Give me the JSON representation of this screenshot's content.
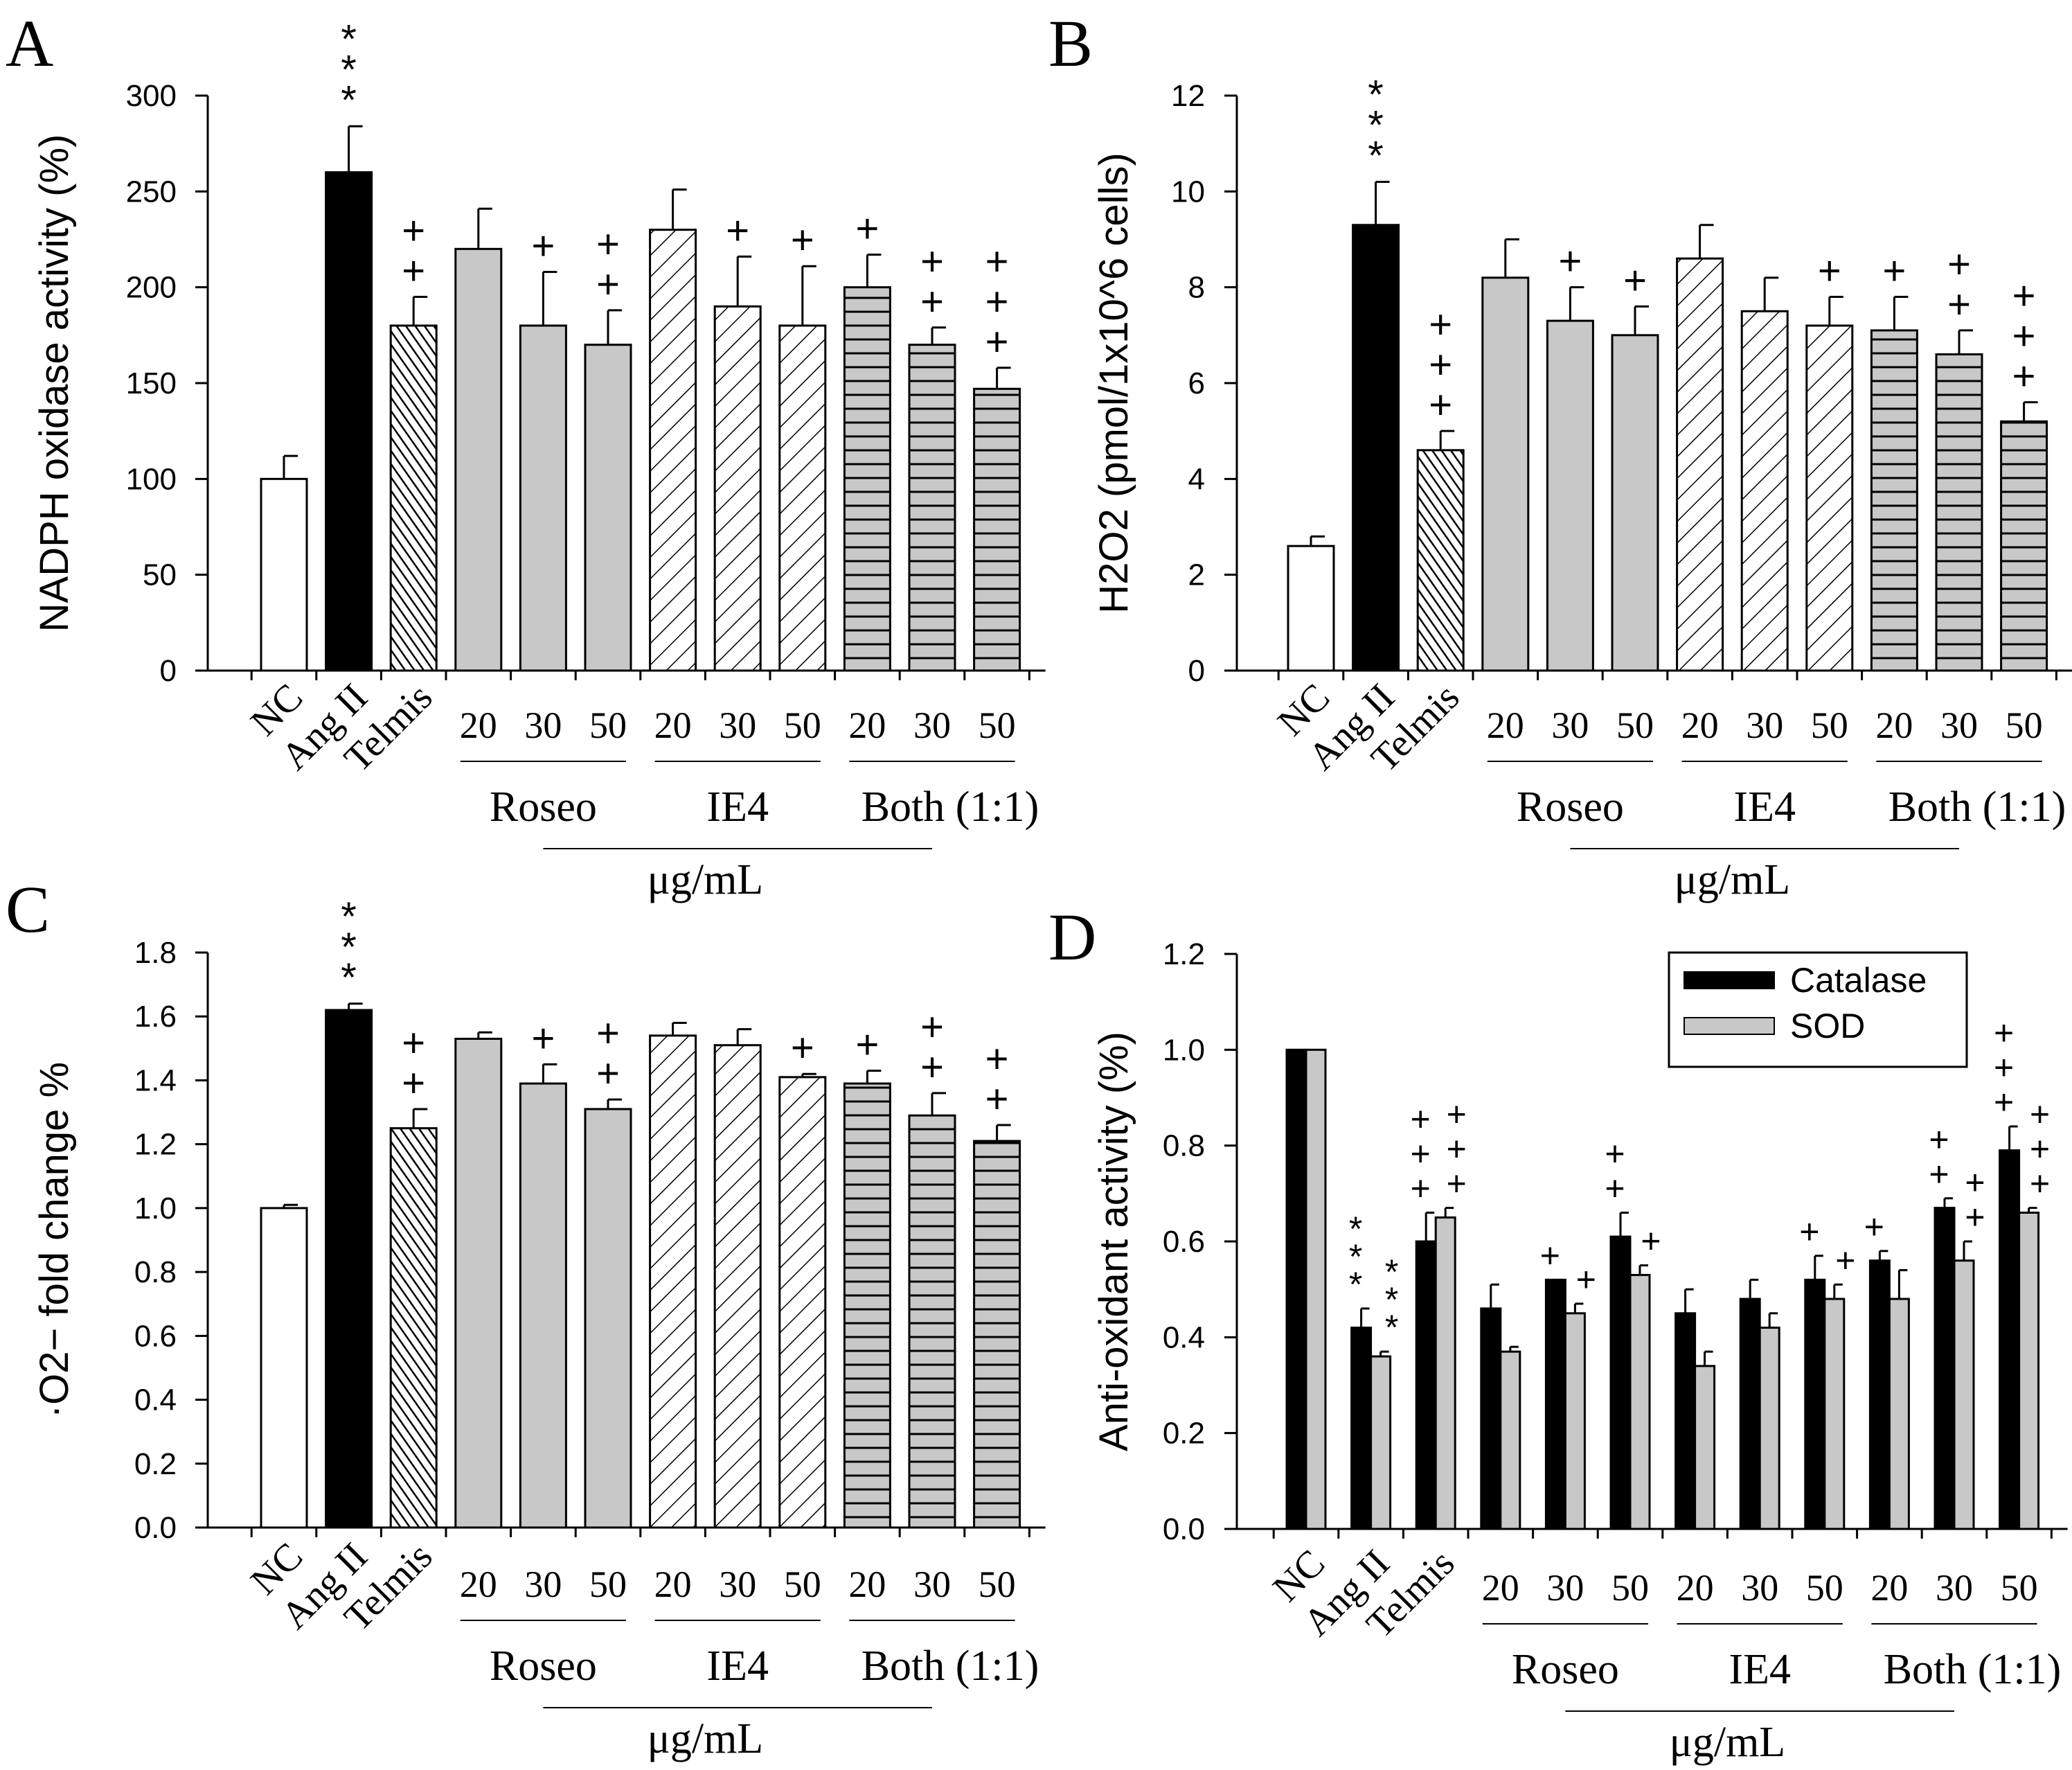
{
  "colors": {
    "control": "#ffffff",
    "angII": "#000000",
    "extract": "#c8c8c8",
    "catalase": "#000000",
    "sod": "#c8c8c8"
  },
  "categories": [
    "NC",
    "Ang II",
    "Telmis",
    "Roseo 20",
    "Roseo 30",
    "Roseo 50",
    "IE4 20",
    "IE4 30",
    "IE4 50",
    "Both 20",
    "Both 30",
    "Both 50"
  ],
  "category_labels": {
    "nc": "NC",
    "ang": "Ang II",
    "telmis": "Telmis"
  },
  "doses": [
    "20",
    "30",
    "50"
  ],
  "groups": [
    "Roseo",
    "IE4",
    "Both (1:1)"
  ],
  "unit": "μg/mL",
  "chart_data": [
    {
      "panel": "A",
      "type": "bar",
      "ylabel": "NADPH oxidase activity (%)",
      "ylim": [
        0,
        300
      ],
      "yticks": [
        "0",
        "50",
        "100",
        "150",
        "200",
        "250",
        "300"
      ],
      "values": [
        100,
        260,
        180,
        220,
        180,
        170,
        230,
        190,
        180,
        200,
        170,
        147
      ],
      "errors": [
        12,
        24,
        15,
        21,
        28,
        18,
        21,
        26,
        31,
        17,
        9,
        11
      ],
      "annotations": [
        "",
        "***",
        "++",
        "",
        "+",
        "++",
        "",
        "+",
        "+",
        "+",
        "++",
        "+++"
      ]
    },
    {
      "panel": "B",
      "type": "bar",
      "ylabel": "H2O2 (pmol/1x10^6 cells)",
      "ylim": [
        0,
        12
      ],
      "yticks": [
        "0",
        "2",
        "4",
        "6",
        "8",
        "10",
        "12"
      ],
      "values": [
        2.6,
        9.3,
        4.6,
        8.2,
        7.3,
        7.0,
        8.6,
        7.5,
        7.2,
        7.1,
        6.6,
        5.2
      ],
      "errors": [
        0.2,
        0.9,
        0.4,
        0.8,
        0.7,
        0.6,
        0.7,
        0.7,
        0.6,
        0.7,
        0.5,
        0.4
      ],
      "annotations": [
        "",
        "***",
        "+++",
        "",
        "+",
        "+",
        "",
        "",
        "+",
        "+",
        "++",
        "+++"
      ]
    },
    {
      "panel": "C",
      "type": "bar",
      "ylabel": "·O2− fold change %",
      "ylim": [
        0,
        1.8
      ],
      "yticks": [
        "0.0",
        "0.2",
        "0.4",
        "0.6",
        "0.8",
        "1.0",
        "1.2",
        "1.4",
        "1.6",
        "1.8"
      ],
      "values": [
        1.0,
        1.62,
        1.25,
        1.53,
        1.39,
        1.31,
        1.54,
        1.51,
        1.41,
        1.39,
        1.29,
        1.21
      ],
      "errors": [
        0.01,
        0.02,
        0.06,
        0.02,
        0.06,
        0.03,
        0.04,
        0.05,
        0.01,
        0.04,
        0.07,
        0.05
      ],
      "annotations": [
        "",
        "***",
        "++",
        "",
        "+",
        "++",
        "",
        "",
        "+",
        "+",
        "++",
        "++"
      ]
    },
    {
      "panel": "D",
      "type": "bar",
      "ylabel": "Anti-oxidant activity (%)",
      "ylim": [
        0,
        1.2
      ],
      "yticks": [
        "0.0",
        "0.2",
        "0.4",
        "0.6",
        "0.8",
        "1.0",
        "1.2"
      ],
      "legend_position": "top-right",
      "series": [
        {
          "name": "Catalase",
          "values": [
            1.0,
            0.42,
            0.6,
            0.46,
            0.52,
            0.61,
            0.45,
            0.48,
            0.52,
            0.56,
            0.67,
            0.79
          ],
          "errors": [
            0,
            0.04,
            0.06,
            0.05,
            0,
            0.05,
            0.05,
            0.04,
            0.05,
            0.02,
            0.02,
            0.05
          ],
          "annotations": [
            "",
            "***",
            "+++",
            "",
            "+",
            "++",
            "",
            "",
            "+",
            "+",
            "++",
            "+++"
          ]
        },
        {
          "name": "SOD",
          "values": [
            1.0,
            0.36,
            0.65,
            0.37,
            0.45,
            0.53,
            0.34,
            0.42,
            0.48,
            0.48,
            0.56,
            0.66
          ],
          "errors": [
            0,
            0.01,
            0.02,
            0.01,
            0.02,
            0.02,
            0.03,
            0.03,
            0.03,
            0.06,
            0.04,
            0.01
          ],
          "annotations": [
            "",
            "***",
            "+++",
            "",
            "+",
            "+",
            "",
            "",
            "+",
            "",
            "++",
            "+++"
          ]
        }
      ]
    }
  ]
}
